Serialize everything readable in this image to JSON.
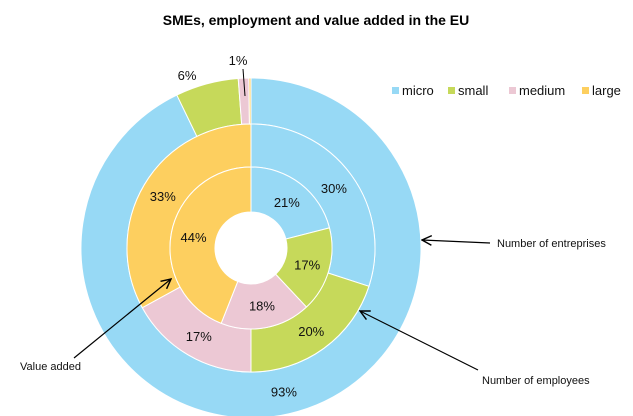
{
  "chart_data": {
    "type": "pie",
    "title": "SMEs, employment and value added in the EU",
    "categories": [
      "micro",
      "small",
      "medium",
      "large"
    ],
    "colors": {
      "micro": "#97D9F5",
      "small": "#C6D95A",
      "medium": "#ECC8D4",
      "large": "#FDCF5F"
    },
    "legend_position": "top-right",
    "series": [
      {
        "name": "Number of entreprises",
        "ring": "outer",
        "values": [
          93,
          6,
          1,
          0.2
        ],
        "labels": [
          "93%",
          "6%",
          "1%",
          ""
        ]
      },
      {
        "name": "Number of employees",
        "ring": "middle",
        "values": [
          30,
          20,
          17,
          33
        ],
        "labels": [
          "30%",
          "20%",
          "17%",
          "33%"
        ]
      },
      {
        "name": "Value added",
        "ring": "inner",
        "values": [
          21,
          17,
          18,
          44
        ],
        "labels": [
          "21%",
          "17%",
          "18%",
          "44%"
        ]
      }
    ]
  }
}
